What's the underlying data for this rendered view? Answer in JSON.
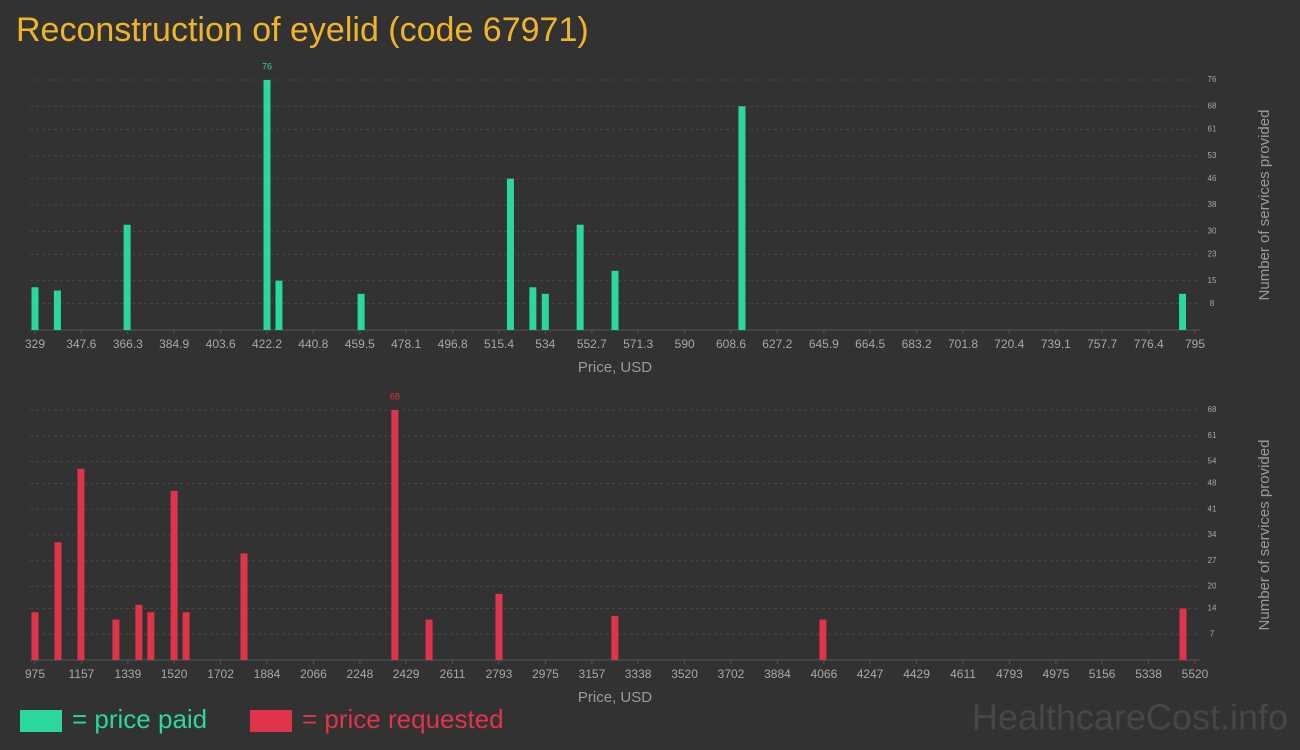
{
  "title": "Reconstruction of eyelid (code 67971)",
  "chart_data": [
    {
      "type": "bar",
      "color": "#2ad89b",
      "x": [
        329,
        338,
        366,
        422.2,
        427,
        460,
        520,
        529,
        534,
        548,
        562,
        613,
        790
      ],
      "values": [
        13,
        12,
        32,
        76,
        15,
        11,
        46,
        13,
        11,
        32,
        18,
        68,
        11
      ],
      "xlim": [
        329,
        795
      ],
      "xticks": [
        329,
        347.6,
        366.3,
        384.9,
        403.6,
        422.2,
        440.8,
        459.5,
        478.1,
        496.8,
        515.4,
        534,
        552.7,
        571.3,
        590,
        608.6,
        627.2,
        645.9,
        664.5,
        683.2,
        701.8,
        720.4,
        739.1,
        757.7,
        776.4,
        795
      ],
      "ylim": [
        0,
        76
      ],
      "yticks": [
        8,
        15,
        23,
        30,
        38,
        46,
        53,
        61,
        68,
        76
      ],
      "xlabel": "Price, USD",
      "ylabel": "Number of services provided",
      "grid": true
    },
    {
      "type": "bar",
      "color": "#e0344a",
      "x": [
        975,
        1065,
        1155,
        1292,
        1382,
        1429,
        1520,
        1567,
        1794,
        2385,
        2519,
        2793,
        3247,
        4062,
        5473
      ],
      "values": [
        13,
        32,
        52,
        11,
        15,
        13,
        46,
        13,
        29,
        68,
        11,
        18,
        12,
        11,
        14
      ],
      "xlim": [
        975,
        5520
      ],
      "xticks": [
        975,
        1157,
        1339,
        1520,
        1702,
        1884,
        2066,
        2248,
        2429,
        2611,
        2793,
        2975,
        3157,
        3338,
        3520,
        3702,
        3884,
        4066,
        4247,
        4429,
        4611,
        4793,
        4975,
        5156,
        5338,
        5520
      ],
      "ylim": [
        0,
        68
      ],
      "yticks": [
        7,
        14,
        20,
        27,
        34,
        41,
        48,
        54,
        61,
        68
      ],
      "xlabel": "Price, USD",
      "ylabel": "Number of services provided",
      "grid": true
    }
  ],
  "legend": [
    {
      "label": "= price paid",
      "color": "#2ad89b"
    },
    {
      "label": "= price requested",
      "color": "#e0344a"
    }
  ],
  "watermark": "HealthcareCost.info"
}
